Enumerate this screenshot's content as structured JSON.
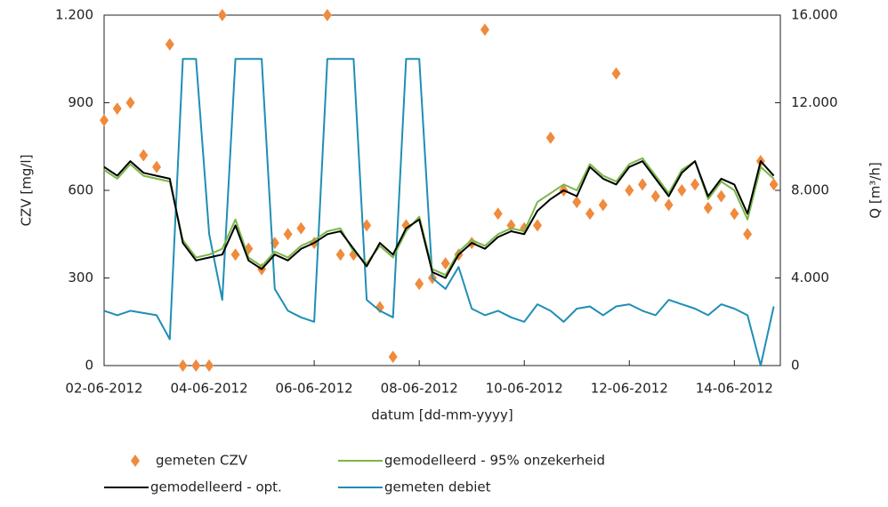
{
  "chart_data": {
    "type": "line",
    "x": [
      "02-06-2012 00:00",
      "02-06-2012 06:00",
      "02-06-2012 12:00",
      "02-06-2012 18:00",
      "03-06-2012 00:00",
      "03-06-2012 06:00",
      "03-06-2012 12:00",
      "03-06-2012 18:00",
      "04-06-2012 00:00",
      "04-06-2012 06:00",
      "04-06-2012 12:00",
      "04-06-2012 18:00",
      "05-06-2012 00:00",
      "05-06-2012 06:00",
      "05-06-2012 12:00",
      "05-06-2012 18:00",
      "06-06-2012 00:00",
      "06-06-2012 06:00",
      "06-06-2012 12:00",
      "06-06-2012 18:00",
      "07-06-2012 00:00",
      "07-06-2012 06:00",
      "07-06-2012 12:00",
      "07-06-2012 18:00",
      "08-06-2012 00:00",
      "08-06-2012 06:00",
      "08-06-2012 12:00",
      "08-06-2012 18:00",
      "09-06-2012 00:00",
      "09-06-2012 06:00",
      "09-06-2012 12:00",
      "09-06-2012 18:00",
      "10-06-2012 00:00",
      "10-06-2012 06:00",
      "10-06-2012 12:00",
      "10-06-2012 18:00",
      "11-06-2012 00:00",
      "11-06-2012 06:00",
      "11-06-2012 12:00",
      "11-06-2012 18:00",
      "12-06-2012 00:00",
      "12-06-2012 06:00",
      "12-06-2012 12:00",
      "12-06-2012 18:00",
      "13-06-2012 00:00",
      "13-06-2012 06:00",
      "13-06-2012 12:00",
      "13-06-2012 18:00",
      "14-06-2012 00:00",
      "14-06-2012 06:00",
      "14-06-2012 12:00",
      "14-06-2012 18:00"
    ],
    "xlim": [
      "02-06-2012 00:00",
      "14-06-2012 21:00"
    ],
    "xticks": [
      {
        "value": "02-06-2012 00:00",
        "label": "02-06-2012"
      },
      {
        "value": "04-06-2012 00:00",
        "label": "04-06-2012"
      },
      {
        "value": "06-06-2012 00:00",
        "label": "06-06-2012"
      },
      {
        "value": "08-06-2012 00:00",
        "label": "08-06-2012"
      },
      {
        "value": "10-06-2012 00:00",
        "label": "10-06-2012"
      },
      {
        "value": "12-06-2012 00:00",
        "label": "12-06-2012"
      },
      {
        "value": "14-06-2012 00:00",
        "label": "14-06-2012"
      }
    ],
    "x_label": "datum [dd-mm-yyyy]",
    "y_label": "CZV [mg/l]",
    "y2_label": "Q [m³/h]",
    "ylim": [
      0,
      1200
    ],
    "yticks": [
      0,
      300,
      600,
      900,
      {
        "value": 1200,
        "label": "1.200"
      }
    ],
    "y2lim": [
      0,
      16000
    ],
    "y2ticks": [
      0,
      {
        "value": 4000,
        "label": "4.000"
      },
      {
        "value": 8000,
        "label": "8.000"
      },
      {
        "value": 12000,
        "label": "12.000"
      },
      {
        "value": 16000,
        "label": "16.000"
      }
    ],
    "series": [
      {
        "name": "gemeten CZV",
        "style": "markers",
        "color": "#f08a3c",
        "values": [
          840,
          880,
          900,
          720,
          680,
          1100,
          0,
          0,
          0,
          1200,
          380,
          400,
          330,
          420,
          450,
          470,
          420,
          1200,
          380,
          380,
          480,
          200,
          30,
          480,
          280,
          300,
          350,
          380,
          420,
          1150,
          520,
          480,
          470,
          480,
          780,
          600,
          560,
          520,
          550,
          1000,
          600,
          620,
          580,
          550,
          600,
          620,
          540,
          580,
          520,
          450,
          700,
          620
        ]
      },
      {
        "name": "gemodelleerd - 95% onzekerheid",
        "style": "line",
        "color": "#7ab648",
        "values": [
          670,
          640,
          690,
          650,
          640,
          630,
          430,
          370,
          380,
          400,
          500,
          370,
          340,
          390,
          370,
          410,
          430,
          460,
          470,
          390,
          350,
          410,
          370,
          460,
          510,
          330,
          310,
          390,
          430,
          410,
          450,
          470,
          460,
          560,
          590,
          620,
          600,
          690,
          650,
          630,
          690,
          710,
          650,
          590,
          670,
          700,
          570,
          630,
          600,
          500,
          680,
          640
        ]
      },
      {
        "name": "gemodelleerd - opt.",
        "style": "line",
        "color": "#000000",
        "values": [
          680,
          650,
          700,
          660,
          650,
          640,
          420,
          360,
          370,
          380,
          480,
          360,
          330,
          380,
          360,
          400,
          420,
          450,
          460,
          400,
          340,
          420,
          380,
          470,
          500,
          320,
          300,
          380,
          420,
          400,
          440,
          460,
          450,
          530,
          570,
          600,
          580,
          680,
          640,
          620,
          680,
          700,
          640,
          580,
          660,
          700,
          580,
          640,
          620,
          520,
          700,
          650
        ]
      },
      {
        "name": "gemeten debiet",
        "style": "line",
        "color": "#1f8eb5",
        "axis": "y2",
        "values": [
          2500,
          2300,
          2500,
          2400,
          2300,
          1200,
          14000,
          14000,
          6000,
          3000,
          14000,
          14000,
          14000,
          3500,
          2500,
          2200,
          2000,
          14000,
          14000,
          14000,
          3000,
          2500,
          2200,
          14000,
          14000,
          4000,
          3500,
          4500,
          2600,
          2300,
          2500,
          2200,
          2000,
          2800,
          2500,
          2000,
          2600,
          2700,
          2300,
          2700,
          2800,
          2500,
          2300,
          3000,
          2800,
          2600,
          2300,
          2800,
          2600,
          2300,
          0,
          2700
        ]
      }
    ]
  }
}
